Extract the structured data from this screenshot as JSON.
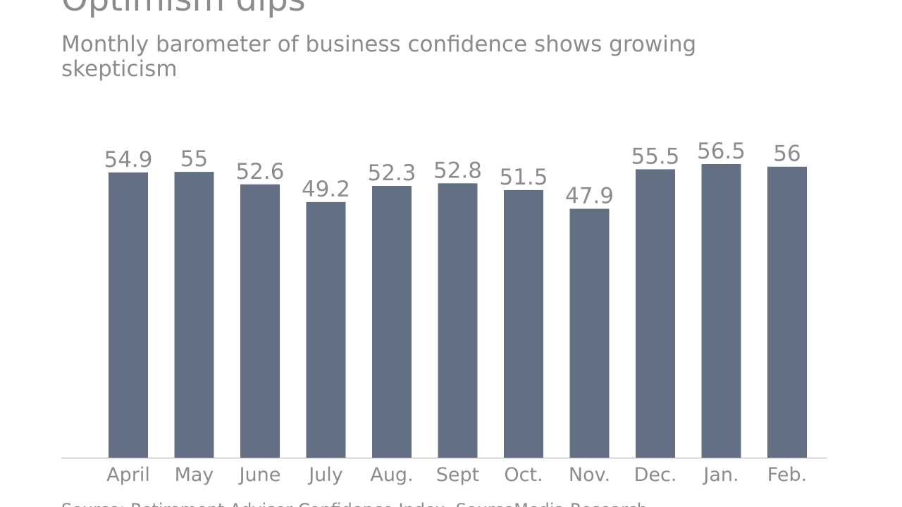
{
  "chart_data": {
    "type": "bar",
    "title": "Optimism dips",
    "subtitle": [
      "Monthly barometer of business confidence shows growing",
      "skepticism"
    ],
    "source": "Source: Retirement Advisor Confidence Index, SourceMedia Research",
    "categories": [
      "April",
      "May",
      "June",
      "July",
      "Aug.",
      "Sept",
      "Oct.",
      "Nov.",
      "Dec.",
      "Jan.",
      "Feb."
    ],
    "values": [
      54.9,
      55,
      52.6,
      49.2,
      52.3,
      52.8,
      51.5,
      47.9,
      55.5,
      56.5,
      56
    ],
    "color": "#637083",
    "ylim": [
      0,
      60
    ]
  }
}
